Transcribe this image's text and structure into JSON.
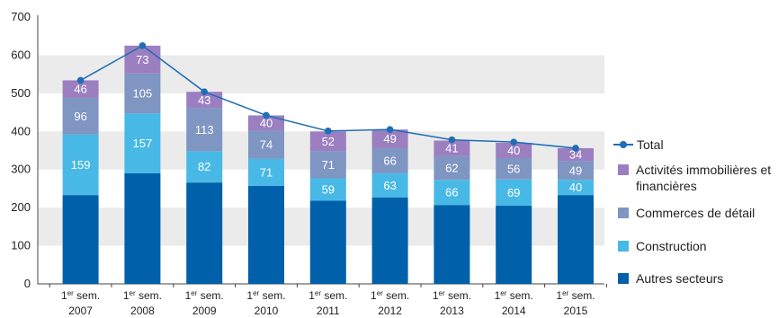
{
  "chart_data": {
    "type": "bar",
    "stacked": true,
    "categories": [
      [
        "1er sem.",
        "2007"
      ],
      [
        "1er sem.",
        "2008"
      ],
      [
        "1er sem.",
        "2009"
      ],
      [
        "1er sem.",
        "2010"
      ],
      [
        "1er sem.",
        "2011"
      ],
      [
        "1er sem.",
        "2012"
      ],
      [
        "1er sem.",
        "2013"
      ],
      [
        "1er sem.",
        "2014"
      ],
      [
        "1er sem.",
        "2015"
      ]
    ],
    "ylim": [
      0,
      700
    ],
    "yticks": [
      0,
      100,
      200,
      300,
      400,
      500,
      600,
      700
    ],
    "grid": "alternating horizontal bands",
    "legend_position": "right",
    "series": [
      {
        "name": "Autres secteurs",
        "color": "#0060a9",
        "values": [
          233,
          290,
          266,
          257,
          218,
          227,
          207,
          205,
          233
        ],
        "labels_shown": false
      },
      {
        "name": "Construction",
        "color": "#48b9e6",
        "values": [
          159,
          157,
          82,
          71,
          59,
          63,
          66,
          69,
          40
        ],
        "labels_shown": true
      },
      {
        "name": "Commerces de détail",
        "color": "#7f95c2",
        "values": [
          96,
          105,
          113,
          74,
          71,
          66,
          62,
          56,
          49
        ],
        "labels_shown": true
      },
      {
        "name": "Activités immobilières et financières",
        "color": "#9b7fc0",
        "values": [
          46,
          73,
          43,
          40,
          52,
          49,
          41,
          40,
          34
        ],
        "labels_shown": true
      }
    ],
    "line_series": {
      "name": "Total",
      "color": "#1f6db5",
      "values": [
        534,
        625,
        504,
        442,
        401,
        405,
        378,
        372,
        356
      ]
    }
  },
  "legend": [
    {
      "type": "line",
      "label": "Total",
      "color": "#1f6db5"
    },
    {
      "type": "box",
      "label": "Activités immobilières et financières",
      "color": "#9b7fc0"
    },
    {
      "type": "box",
      "label": "Commerces de détail",
      "color": "#7f95c2"
    },
    {
      "type": "box",
      "label": "Construction",
      "color": "#48b9e6"
    },
    {
      "type": "box",
      "label": "Autres secteurs",
      "color": "#0060a9"
    }
  ]
}
